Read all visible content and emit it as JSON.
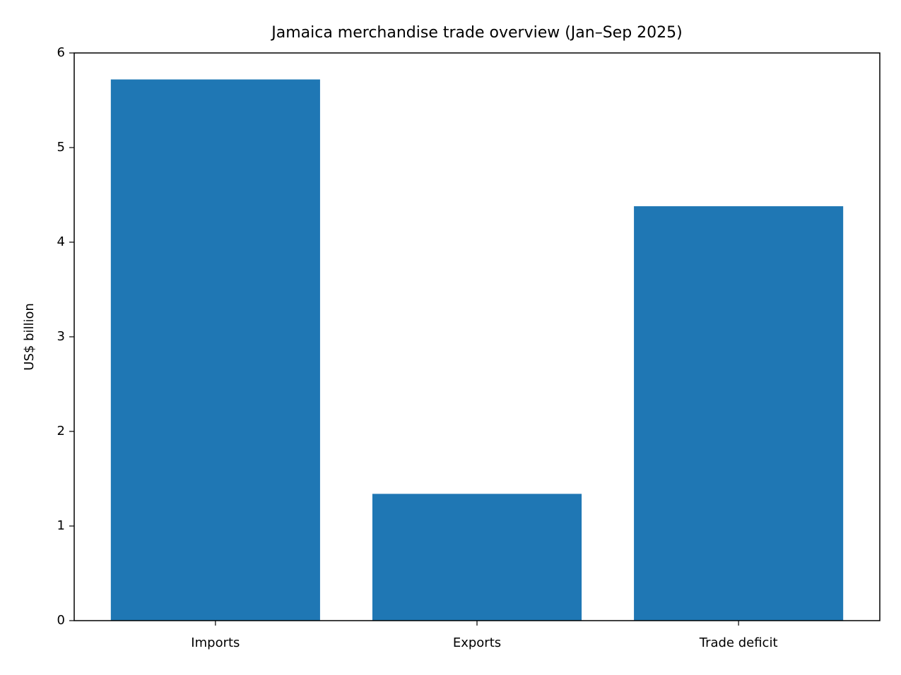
{
  "chart_data": {
    "type": "bar",
    "title": "Jamaica merchandise trade overview (Jan–Sep 2025)",
    "y_label": "US$ billion",
    "categories": [
      "Imports",
      "Exports",
      "Trade deficit"
    ],
    "values": [
      5.72,
      1.34,
      4.38
    ],
    "color": "#1f77b4",
    "ylim": [
      0,
      6
    ],
    "yticks": [
      0,
      1,
      2,
      3,
      4,
      5,
      6
    ],
    "grid": false
  }
}
